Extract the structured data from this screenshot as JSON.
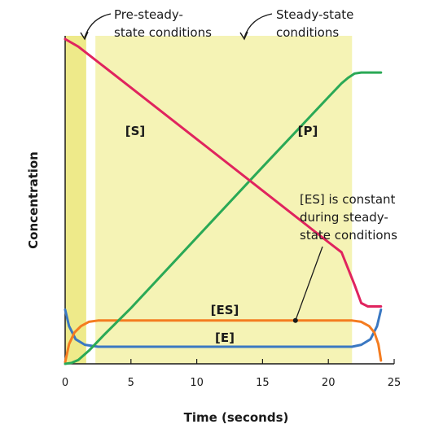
{
  "chart_data": {
    "type": "line",
    "title": "",
    "xlabel": "Time (seconds)",
    "ylabel": "Concentration",
    "xlim": [
      0,
      25
    ],
    "ylim": [
      0,
      1
    ],
    "x_ticks": [
      "0",
      "5",
      "10",
      "15",
      "20",
      "25"
    ],
    "x_tick_values": [
      0,
      5,
      10,
      15,
      20,
      25
    ],
    "grid": false,
    "regions": [
      {
        "label": "Pre-steady-\nstate conditions",
        "x_start": 0,
        "x_end": 1.6,
        "color": "#eeea8a"
      },
      {
        "label": "Steady-state\nconditions",
        "x_start": 2.3,
        "x_end": 21.8,
        "color": "#f5f3b5"
      }
    ],
    "series": [
      {
        "name": "[S]",
        "color": "#e0245e",
        "points": [
          [
            0,
            0.99
          ],
          [
            1,
            0.967
          ],
          [
            5,
            0.842
          ],
          [
            10,
            0.685
          ],
          [
            15,
            0.528
          ],
          [
            20,
            0.371
          ],
          [
            21,
            0.34
          ],
          [
            22,
            0.24
          ],
          [
            22.5,
            0.185
          ],
          [
            23,
            0.175
          ],
          [
            23.5,
            0.175
          ],
          [
            24,
            0.175
          ]
        ]
      },
      {
        "name": "[P]",
        "color": "#2aa956",
        "points": [
          [
            0,
            0.0
          ],
          [
            0.5,
            0.003
          ],
          [
            1,
            0.012
          ],
          [
            1.8,
            0.04
          ],
          [
            3,
            0.09
          ],
          [
            5,
            0.17
          ],
          [
            10,
            0.385
          ],
          [
            15,
            0.6
          ],
          [
            20,
            0.813
          ],
          [
            21,
            0.855
          ],
          [
            21.5,
            0.872
          ],
          [
            22,
            0.885
          ],
          [
            22.5,
            0.888
          ],
          [
            24,
            0.888
          ]
        ]
      },
      {
        "name": "[ES]",
        "color": "#f47c20",
        "points": [
          [
            0,
            0.005
          ],
          [
            0.3,
            0.06
          ],
          [
            0.7,
            0.095
          ],
          [
            1.2,
            0.115
          ],
          [
            1.8,
            0.128
          ],
          [
            2.5,
            0.132
          ],
          [
            21.8,
            0.132
          ],
          [
            22.5,
            0.128
          ],
          [
            23.1,
            0.115
          ],
          [
            23.5,
            0.095
          ],
          [
            23.8,
            0.06
          ],
          [
            24,
            0.01
          ]
        ]
      },
      {
        "name": "[E]",
        "color": "#3a78c2",
        "points": [
          [
            0,
            0.165
          ],
          [
            0.3,
            0.115
          ],
          [
            0.8,
            0.075
          ],
          [
            1.5,
            0.058
          ],
          [
            2.5,
            0.052
          ],
          [
            21.8,
            0.052
          ],
          [
            22.5,
            0.058
          ],
          [
            23.2,
            0.075
          ],
          [
            23.7,
            0.115
          ],
          [
            24,
            0.165
          ]
        ]
      }
    ],
    "annotations": [
      {
        "text": "[ES] is constant\nduring steady-\nstate conditions",
        "x": 17.5,
        "y": 0.132
      }
    ]
  }
}
